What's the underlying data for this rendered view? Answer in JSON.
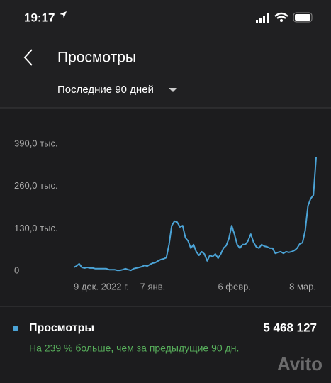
{
  "status_bar": {
    "time": "19:17"
  },
  "header": {
    "title": "Просмотры",
    "period": "Последние 90 дней"
  },
  "chart_data": {
    "type": "line",
    "categories": [
      "9 дек. 2022 г.",
      null,
      null,
      null,
      null,
      null,
      null,
      null,
      null,
      null,
      null,
      null,
      null,
      null,
      null,
      null,
      null,
      null,
      null,
      null,
      null,
      null,
      null,
      null,
      null,
      null,
      null,
      null,
      null,
      "7 янв.",
      null,
      null,
      null,
      null,
      null,
      null,
      null,
      null,
      null,
      null,
      null,
      null,
      null,
      null,
      null,
      null,
      null,
      null,
      null,
      null,
      null,
      null,
      null,
      null,
      null,
      null,
      null,
      null,
      null,
      "6 февр.",
      null,
      null,
      null,
      null,
      null,
      null,
      null,
      null,
      null,
      null,
      null,
      null,
      null,
      null,
      null,
      null,
      null,
      null,
      null,
      null,
      null,
      null,
      null,
      null,
      null,
      null,
      null,
      null,
      null,
      "8 мар."
    ],
    "series": [
      {
        "name": "Просмотры",
        "color": "#4ba3d6",
        "values": [
          11,
          15,
          22,
          11,
          9,
          11,
          9,
          9,
          7,
          7,
          7,
          7,
          7,
          4,
          4,
          4,
          2,
          2,
          4,
          7,
          4,
          2,
          7,
          9,
          11,
          13,
          17,
          15,
          20,
          24,
          26,
          31,
          35,
          37,
          41,
          81,
          139,
          153,
          150,
          135,
          139,
          102,
          92,
          70,
          81,
          59,
          48,
          59,
          52,
          31,
          48,
          44,
          52,
          39,
          52,
          70,
          78,
          100,
          139,
          113,
          81,
          70,
          81,
          81,
          92,
          113,
          89,
          74,
          70,
          81,
          76,
          74,
          70,
          70,
          54,
          57,
          59,
          54,
          59,
          57,
          59,
          63,
          70,
          83,
          87,
          124,
          200,
          222,
          233,
          349
        ]
      }
    ],
    "ylim": [
      0,
      390
    ],
    "yticks": [
      0,
      {
        "value": 130,
        "label": "130,0 тыс."
      },
      {
        "value": 260,
        "label": "260,0 тыс."
      },
      {
        "value": 390,
        "label": "390,0 тыс."
      }
    ],
    "grid": false
  },
  "summary": {
    "total": "5 468 127",
    "comparison": "На 239 % больше, чем за предыдущие 90 дн."
  },
  "watermark": "Avito"
}
